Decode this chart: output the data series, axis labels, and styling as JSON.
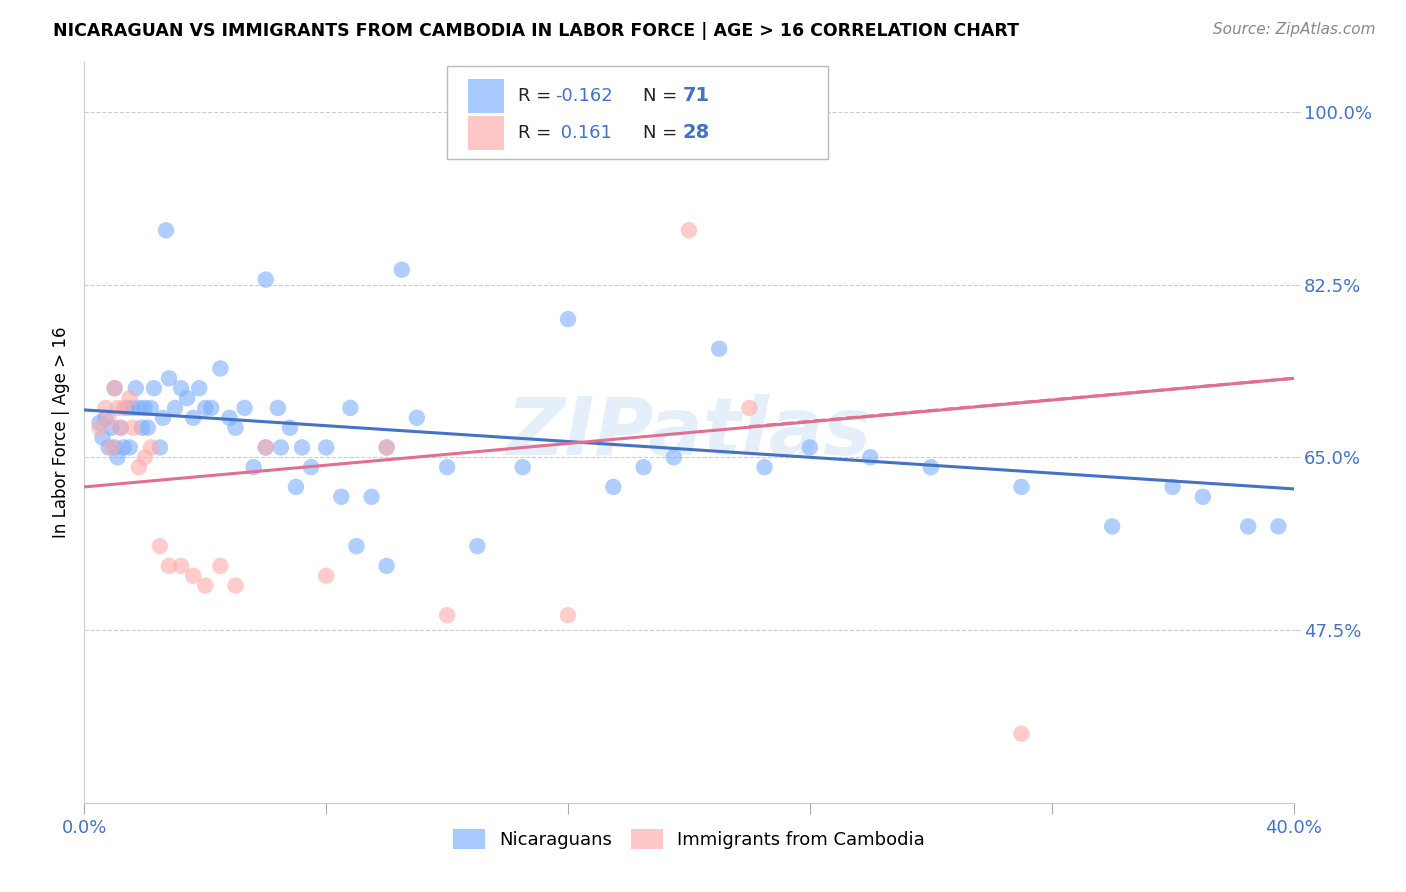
{
  "title": "NICARAGUAN VS IMMIGRANTS FROM CAMBODIA IN LABOR FORCE | AGE > 16 CORRELATION CHART",
  "source": "Source: ZipAtlas.com",
  "ylabel": "In Labor Force | Age > 16",
  "x_min": 0.0,
  "x_max": 0.4,
  "y_min": 0.3,
  "y_max": 1.05,
  "x_ticks": [
    0.0,
    0.08,
    0.16,
    0.24,
    0.32,
    0.4
  ],
  "x_tick_labels": [
    "0.0%",
    "",
    "",
    "",
    "",
    "40.0%"
  ],
  "y_ticks": [
    0.475,
    0.65,
    0.825,
    1.0
  ],
  "y_tick_labels": [
    "47.5%",
    "65.0%",
    "82.5%",
    "100.0%"
  ],
  "y_tick_color": "#4472c4",
  "x_tick_color": "#4472c4",
  "background_color": "#ffffff",
  "grid_color": "#c8c8c8",
  "color_blue": "#7caeff",
  "color_pink": "#ffaaaa",
  "line_color_blue": "#4472c4",
  "line_color_pink": "#e07090",
  "watermark": "ZIPatlas",
  "legend_label1": "Nicaraguans",
  "legend_label2": "Immigrants from Cambodia",
  "blue_points_x": [
    0.005,
    0.006,
    0.007,
    0.008,
    0.009,
    0.01,
    0.01,
    0.011,
    0.012,
    0.013,
    0.014,
    0.015,
    0.016,
    0.017,
    0.018,
    0.019,
    0.02,
    0.021,
    0.022,
    0.023,
    0.025,
    0.026,
    0.027,
    0.028,
    0.03,
    0.032,
    0.034,
    0.036,
    0.038,
    0.04,
    0.042,
    0.045,
    0.048,
    0.05,
    0.053,
    0.056,
    0.06,
    0.064,
    0.068,
    0.072,
    0.08,
    0.088,
    0.095,
    0.1,
    0.105,
    0.11,
    0.12,
    0.13,
    0.145,
    0.16,
    0.175,
    0.185,
    0.195,
    0.21,
    0.225,
    0.24,
    0.26,
    0.28,
    0.31,
    0.34,
    0.36,
    0.37,
    0.385,
    0.395,
    0.06,
    0.065,
    0.07,
    0.075,
    0.085,
    0.09,
    0.1
  ],
  "blue_points_y": [
    0.685,
    0.67,
    0.69,
    0.66,
    0.68,
    0.66,
    0.72,
    0.65,
    0.68,
    0.66,
    0.7,
    0.66,
    0.7,
    0.72,
    0.7,
    0.68,
    0.7,
    0.68,
    0.7,
    0.72,
    0.66,
    0.69,
    0.88,
    0.73,
    0.7,
    0.72,
    0.71,
    0.69,
    0.72,
    0.7,
    0.7,
    0.74,
    0.69,
    0.68,
    0.7,
    0.64,
    0.66,
    0.7,
    0.68,
    0.66,
    0.66,
    0.7,
    0.61,
    0.66,
    0.84,
    0.69,
    0.64,
    0.56,
    0.64,
    0.79,
    0.62,
    0.64,
    0.65,
    0.76,
    0.64,
    0.66,
    0.65,
    0.64,
    0.62,
    0.58,
    0.62,
    0.61,
    0.58,
    0.58,
    0.83,
    0.66,
    0.62,
    0.64,
    0.61,
    0.56,
    0.54
  ],
  "pink_points_x": [
    0.005,
    0.007,
    0.008,
    0.009,
    0.01,
    0.011,
    0.012,
    0.013,
    0.015,
    0.016,
    0.018,
    0.02,
    0.022,
    0.025,
    0.028,
    0.032,
    0.036,
    0.04,
    0.045,
    0.05,
    0.06,
    0.08,
    0.1,
    0.12,
    0.16,
    0.2,
    0.22,
    0.31
  ],
  "pink_points_y": [
    0.68,
    0.7,
    0.69,
    0.66,
    0.72,
    0.7,
    0.68,
    0.7,
    0.71,
    0.68,
    0.64,
    0.65,
    0.66,
    0.56,
    0.54,
    0.54,
    0.53,
    0.52,
    0.54,
    0.52,
    0.66,
    0.53,
    0.66,
    0.49,
    0.49,
    0.88,
    0.7,
    0.37
  ],
  "blue_line_x": [
    0.0,
    0.4
  ],
  "blue_line_y": [
    0.698,
    0.618
  ],
  "pink_line_x": [
    0.0,
    0.4
  ],
  "pink_line_y": [
    0.62,
    0.73
  ]
}
